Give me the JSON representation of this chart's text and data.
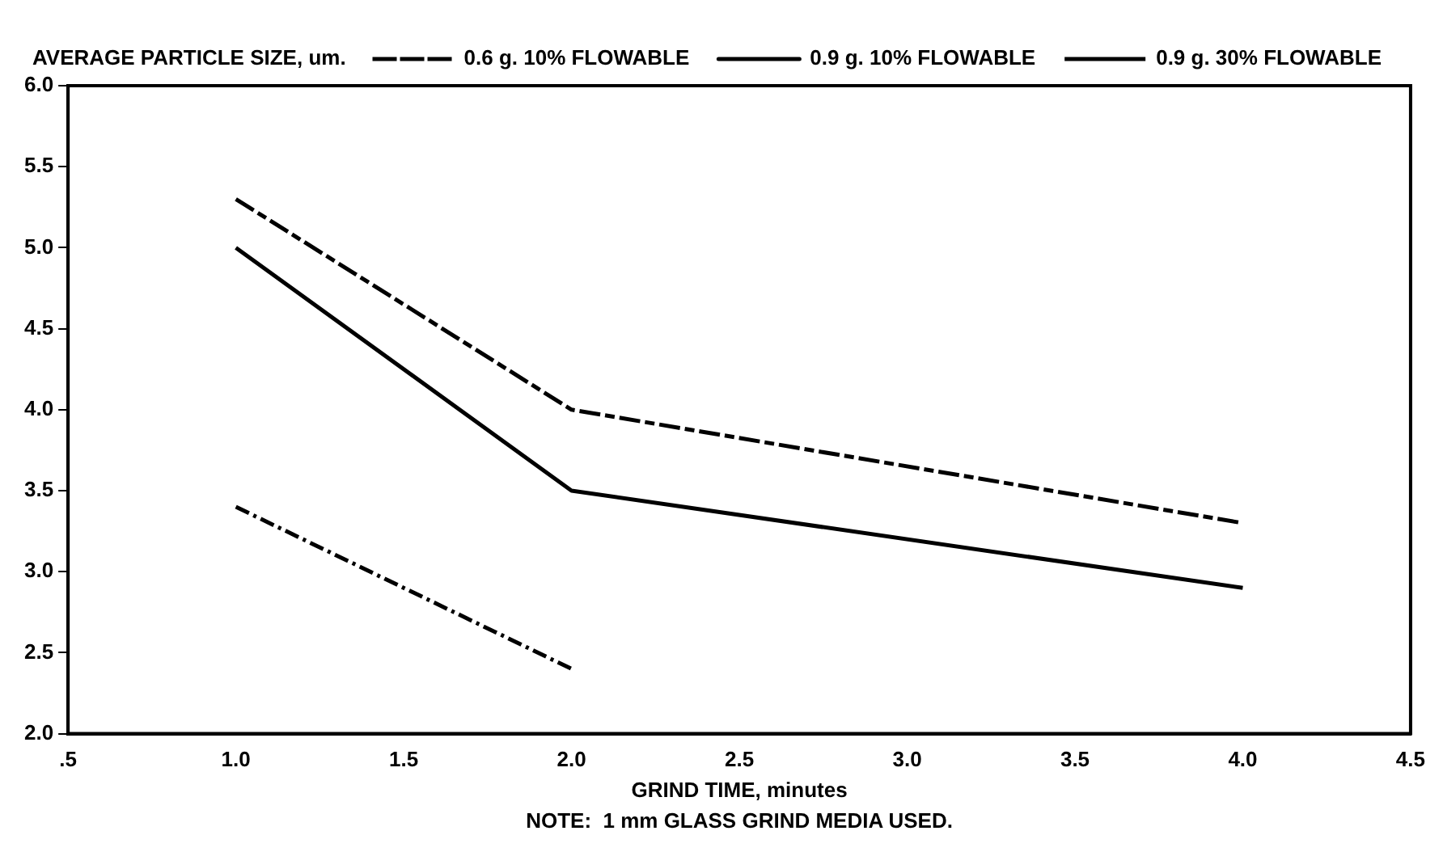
{
  "chart_data": {
    "type": "line",
    "ylabel": "AVERAGE PARTICLE SIZE, um.",
    "xlabel": "GRIND TIME, minutes",
    "annotations": [
      "NOTE:  1 mm GLASS GRIND MEDIA USED."
    ],
    "series": [
      {
        "name": "0.6 g. 10% FLOWABLE",
        "color": "#000000",
        "line_style": "dotted",
        "x": [
          1,
          2
        ],
        "values": [
          3.4,
          2.4
        ]
      },
      {
        "name": "0.9 g. 10% FLOWABLE",
        "color": "#000000",
        "line_style": "solid",
        "x": [
          1,
          2,
          4
        ],
        "values": [
          5.0,
          3.5,
          2.9
        ]
      },
      {
        "name": "0.9 g. 30% FLOWABLE",
        "color": "#000000",
        "line_style": "dashed",
        "x": [
          1,
          2,
          4
        ],
        "values": [
          5.3,
          4.0,
          3.3
        ]
      }
    ],
    "xlim": [
      0.5,
      4.5
    ],
    "xticks": [
      {
        "value": 0.5,
        "label": ".5"
      },
      {
        "value": 1,
        "label": "1.0"
      },
      {
        "value": 1.5,
        "label": "1.5"
      },
      {
        "value": 2,
        "label": "2.0"
      },
      {
        "value": 2.5,
        "label": "2.5"
      },
      {
        "value": 3,
        "label": "3.0"
      },
      {
        "value": 3.5,
        "label": "3.5"
      },
      {
        "value": 4,
        "label": "4.0"
      },
      {
        "value": 4.5,
        "label": "4.5"
      }
    ],
    "ylim": [
      2,
      6
    ],
    "yticks": [
      {
        "value": 2,
        "label": "2.0"
      },
      {
        "value": 2.5,
        "label": "2.5"
      },
      {
        "value": 3,
        "label": "3.0"
      },
      {
        "value": 3.5,
        "label": "3.5"
      },
      {
        "value": 4,
        "label": "4.0"
      },
      {
        "value": 4.5,
        "label": "4.5"
      },
      {
        "value": 5,
        "label": "5.0"
      },
      {
        "value": 5.5,
        "label": "5.5"
      },
      {
        "value": 6,
        "label": "6.0"
      }
    ],
    "grid": false,
    "legend": "top",
    "marker": "none"
  }
}
